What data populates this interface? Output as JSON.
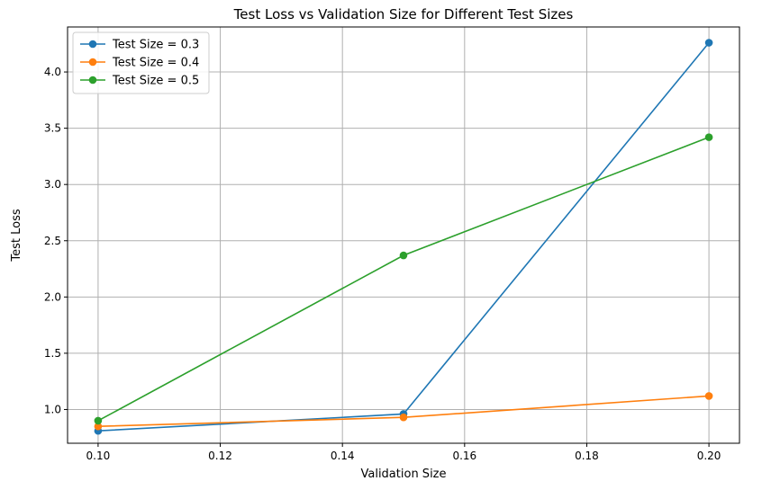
{
  "chart_data": {
    "type": "line",
    "title": "Test Loss vs Validation Size for Different Test Sizes",
    "xlabel": "Validation Size",
    "ylabel": "Test Loss",
    "xlim": [
      0.095,
      0.205
    ],
    "ylim": [
      0.7,
      4.4
    ],
    "xticks": [
      0.1,
      0.12,
      0.14,
      0.16,
      0.18,
      0.2
    ],
    "xtick_labels": [
      "0.10",
      "0.12",
      "0.14",
      "0.16",
      "0.18",
      "0.20"
    ],
    "yticks": [
      1.0,
      1.5,
      2.0,
      2.5,
      3.0,
      3.5,
      4.0
    ],
    "ytick_labels": [
      "1.0",
      "1.5",
      "2.0",
      "2.5",
      "3.0",
      "3.5",
      "4.0"
    ],
    "grid": true,
    "legend_position": "top-left",
    "x": [
      0.1,
      0.15,
      0.2
    ],
    "series": [
      {
        "name": "Test Size = 0.3",
        "values": [
          0.81,
          0.96,
          4.26
        ],
        "color": "#1f77b4"
      },
      {
        "name": "Test Size = 0.4",
        "values": [
          0.85,
          0.93,
          1.12
        ],
        "color": "#ff7f0e"
      },
      {
        "name": "Test Size = 0.5",
        "values": [
          0.9,
          2.37,
          3.42
        ],
        "color": "#2ca02c"
      }
    ]
  }
}
